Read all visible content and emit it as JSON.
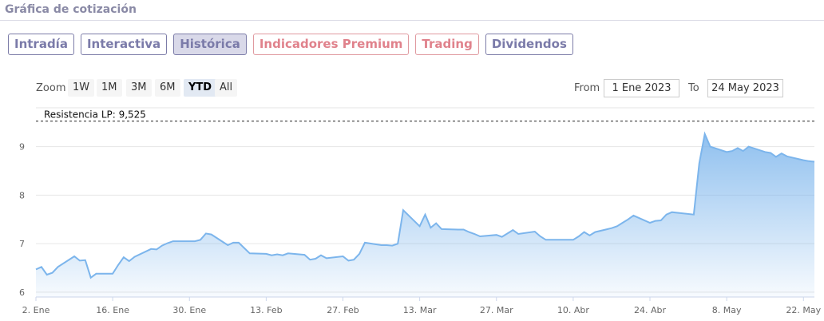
{
  "section_title": "Gráfica de cotización",
  "tabs": [
    {
      "label": "Intradía"
    },
    {
      "label": "Interactiva"
    },
    {
      "label": "Histórica"
    },
    {
      "label": "Indicadores Premium"
    },
    {
      "label": "Trading"
    },
    {
      "label": "Dividendos"
    }
  ],
  "active_tab": "Histórica",
  "zoom": {
    "label": "Zoom",
    "options": [
      "1W",
      "1M",
      "3M",
      "6M",
      "YTD",
      "All"
    ],
    "active": "YTD"
  },
  "range": {
    "from_label": "From",
    "from_value": "1 Ene 2023",
    "to_label": "To",
    "to_value": "24 May 2023"
  },
  "colors": {
    "line": "#7cb5ec",
    "area_top": "#7cb5ec",
    "tab_text": "#7b7ba9",
    "premium_text": "#e0828c"
  },
  "chart_data": {
    "type": "area",
    "x_ticks": [
      "2. Ene",
      "16. Ene",
      "30. Ene",
      "13. Feb",
      "27. Feb",
      "13. Mar",
      "27. Mar",
      "10. Abr",
      "24. Abr",
      "8. May",
      "22. May"
    ],
    "y_ticks": [
      "6",
      "7",
      "8",
      "9"
    ],
    "ylim": [
      5.9,
      9.8
    ],
    "grid": true,
    "annotations": [
      {
        "label": "Resistencia LP: 9,525",
        "y": 9.525,
        "style": "dashed"
      }
    ],
    "series": [
      {
        "x": [
          "2023-01-02",
          "2023-01-03",
          "2023-01-04",
          "2023-01-05",
          "2023-01-06",
          "2023-01-09",
          "2023-01-10",
          "2023-01-11",
          "2023-01-12",
          "2023-01-13",
          "2023-01-16",
          "2023-01-17",
          "2023-01-18",
          "2023-01-19",
          "2023-01-20",
          "2023-01-23",
          "2023-01-24",
          "2023-01-25",
          "2023-01-26",
          "2023-01-27",
          "2023-01-30",
          "2023-01-31",
          "2023-02-01",
          "2023-02-02",
          "2023-02-03",
          "2023-02-06",
          "2023-02-07",
          "2023-02-08",
          "2023-02-09",
          "2023-02-10",
          "2023-02-13",
          "2023-02-14",
          "2023-02-15",
          "2023-02-16",
          "2023-02-17",
          "2023-02-20",
          "2023-02-21",
          "2023-02-22",
          "2023-02-23",
          "2023-02-24",
          "2023-02-27",
          "2023-02-28",
          "2023-03-01",
          "2023-03-02",
          "2023-03-03",
          "2023-03-06",
          "2023-03-07",
          "2023-03-08",
          "2023-03-09",
          "2023-03-10",
          "2023-03-13",
          "2023-03-14",
          "2023-03-15",
          "2023-03-16",
          "2023-03-17",
          "2023-03-20",
          "2023-03-21",
          "2023-03-22",
          "2023-03-23",
          "2023-03-24",
          "2023-03-27",
          "2023-03-28",
          "2023-03-29",
          "2023-03-30",
          "2023-03-31",
          "2023-04-03",
          "2023-04-04",
          "2023-04-05",
          "2023-04-06",
          "2023-04-10",
          "2023-04-11",
          "2023-04-12",
          "2023-04-13",
          "2023-04-14",
          "2023-04-17",
          "2023-04-18",
          "2023-04-19",
          "2023-04-20",
          "2023-04-21",
          "2023-04-24",
          "2023-04-25",
          "2023-04-26",
          "2023-04-27",
          "2023-04-28",
          "2023-05-02",
          "2023-05-03",
          "2023-05-04",
          "2023-05-05",
          "2023-05-08",
          "2023-05-09",
          "2023-05-10",
          "2023-05-11",
          "2023-05-12",
          "2023-05-15",
          "2023-05-16",
          "2023-05-17",
          "2023-05-18",
          "2023-05-19",
          "2023-05-22",
          "2023-05-23",
          "2023-05-24"
        ],
        "values": [
          6.47,
          6.52,
          6.36,
          6.4,
          6.52,
          6.74,
          6.65,
          6.66,
          6.3,
          6.38,
          6.38,
          6.56,
          6.72,
          6.64,
          6.73,
          6.89,
          6.88,
          6.96,
          7.01,
          7.05,
          7.05,
          7.05,
          7.08,
          7.21,
          7.19,
          6.97,
          7.02,
          7.02,
          6.91,
          6.8,
          6.79,
          6.76,
          6.78,
          6.76,
          6.8,
          6.77,
          6.67,
          6.69,
          6.76,
          6.7,
          6.74,
          6.65,
          6.67,
          6.79,
          7.02,
          6.97,
          6.97,
          6.96,
          7.0,
          7.69,
          7.36,
          7.6,
          7.33,
          7.42,
          7.3,
          7.29,
          7.29,
          7.24,
          7.2,
          7.15,
          7.18,
          7.14,
          7.21,
          7.28,
          7.2,
          7.25,
          7.15,
          7.08,
          7.08,
          7.08,
          7.15,
          7.24,
          7.17,
          7.24,
          7.32,
          7.36,
          7.43,
          7.5,
          7.58,
          7.43,
          7.47,
          7.48,
          7.6,
          7.65,
          7.6,
          8.66,
          9.26,
          9.0,
          8.89,
          8.91,
          8.97,
          8.91,
          9.0,
          8.89,
          8.87,
          8.79,
          8.86,
          8.8,
          8.72,
          8.7,
          8.69
        ]
      }
    ]
  }
}
